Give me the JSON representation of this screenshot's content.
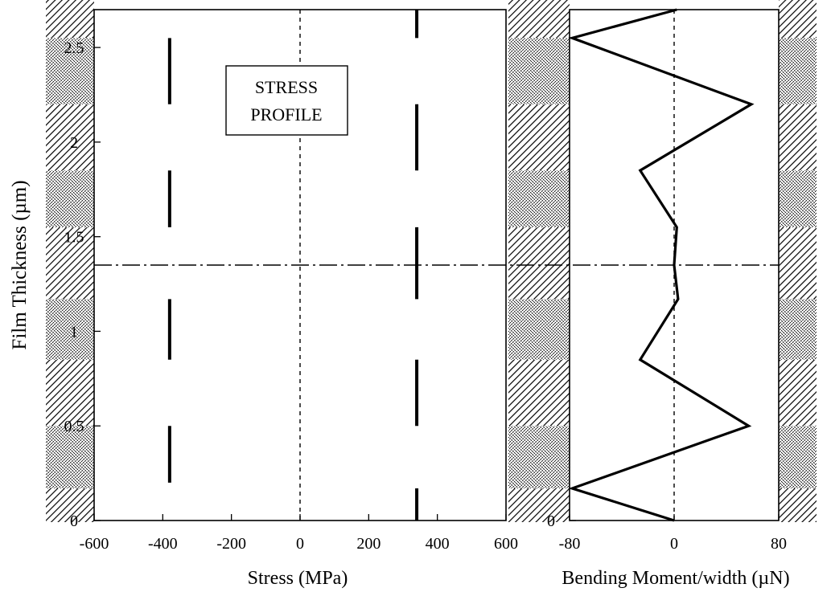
{
  "chart_data": [
    {
      "type": "line",
      "title": "",
      "xlabel": "Stress (MPa)",
      "ylabel": "Film Thickness (µm)",
      "xlim": [
        -600,
        600
      ],
      "ylim": [
        0,
        2.7
      ],
      "x_ticks": [
        "-600",
        "-400",
        "-200",
        "0",
        "200",
        "400",
        "600"
      ],
      "y_ticks": [
        "0",
        "0.5",
        "1",
        "1.5",
        "2",
        "2.5"
      ],
      "annotation": [
        "STRESS",
        "PROFILE"
      ],
      "reference_lines": {
        "x": 0,
        "y": 1.35
      },
      "series": [
        {
          "style": "dashed-segments",
          "segments": [
            {
              "x": -380,
              "y": [
                0.2,
                0.5
              ]
            },
            {
              "x": -380,
              "y": [
                0.85,
                1.17
              ]
            },
            {
              "x": -380,
              "y": [
                1.55,
                1.85
              ]
            },
            {
              "x": -380,
              "y": [
                2.2,
                2.55
              ]
            },
            {
              "x": 340,
              "y": [
                0,
                0.17
              ]
            },
            {
              "x": 340,
              "y": [
                0.5,
                0.85
              ]
            },
            {
              "x": 340,
              "y": [
                1.17,
                1.55
              ]
            },
            {
              "x": 340,
              "y": [
                1.85,
                2.2
              ]
            },
            {
              "x": 340,
              "y": [
                2.55,
                2.7
              ]
            }
          ]
        }
      ],
      "grid": false,
      "hatched_margins": true
    },
    {
      "type": "line",
      "title": "",
      "xlabel": "Bending Moment/width (µN)",
      "ylabel": "",
      "xlim": [
        -80,
        80
      ],
      "ylim": [
        0,
        2.7
      ],
      "x_ticks": [
        "-80",
        "0",
        "80"
      ],
      "y_ticks": [
        "0"
      ],
      "reference_lines": {
        "x": 0,
        "y": 1.35
      },
      "series": [
        {
          "x": [
            0,
            -78,
            57,
            -26,
            3,
            0,
            2,
            -26,
            59,
            -78,
            2
          ],
          "y": [
            0,
            0.17,
            0.5,
            0.85,
            1.17,
            1.35,
            1.55,
            1.85,
            2.2,
            2.55,
            2.7
          ]
        }
      ],
      "grid": false,
      "hatched_margins": true
    }
  ]
}
